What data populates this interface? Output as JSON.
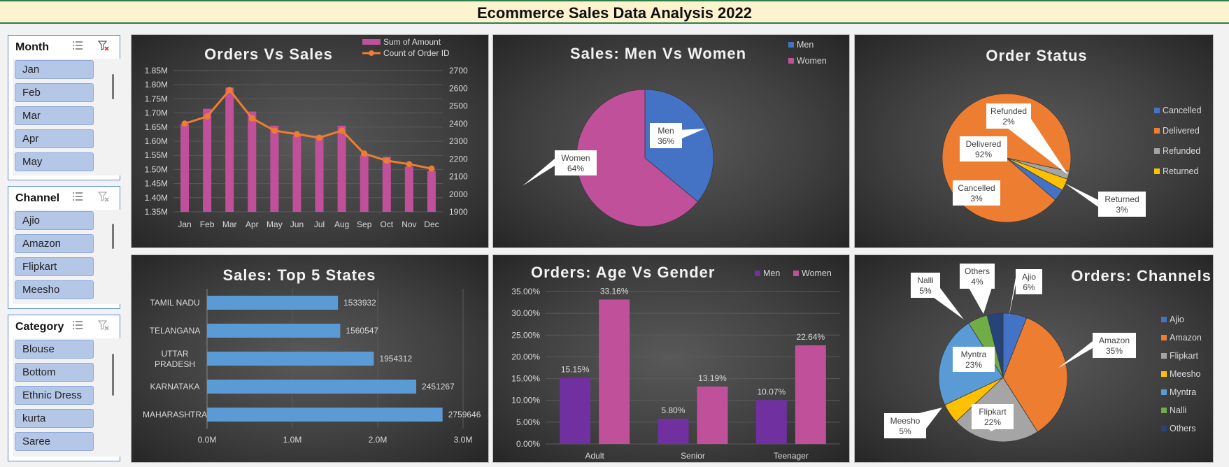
{
  "header": {
    "title": "Ecommerce Sales Data Analysis 2022"
  },
  "slicers": [
    {
      "title": "Month",
      "items": [
        "Jan",
        "Feb",
        "Mar",
        "Apr",
        "May"
      ]
    },
    {
      "title": "Channel",
      "items": [
        "Ajio",
        "Amazon",
        "Flipkart",
        "Meesho"
      ]
    },
    {
      "title": "Category",
      "items": [
        "Blouse",
        "Bottom",
        "Ethnic Dress",
        "kurta",
        "Saree"
      ]
    }
  ],
  "colors": {
    "pink": "#c0509a",
    "orange": "#ed7d31",
    "blue": "#4472c4",
    "lightblue": "#5b9bd5",
    "gray": "#a5a5a5",
    "yellow": "#ffc000",
    "green": "#70ad47",
    "navy": "#264478",
    "purple": "#7030a0",
    "text": "#d9d9d9"
  },
  "chart_data": [
    {
      "id": "orders-vs-sales",
      "type": "bar",
      "title": "Orders Vs Sales",
      "categories": [
        "Jan",
        "Feb",
        "Mar",
        "Apr",
        "May",
        "Jun",
        "Jul",
        "Aug",
        "Sep",
        "Oct",
        "Nov",
        "Dec"
      ],
      "series": [
        {
          "name": "Sum of Amount",
          "type": "bar",
          "axis": "left",
          "values": [
            1.66,
            1.715,
            1.79,
            1.705,
            1.655,
            1.62,
            1.62,
            1.655,
            1.55,
            1.545,
            1.51,
            1.495
          ]
        },
        {
          "name": "Count of Order ID",
          "type": "line",
          "axis": "right",
          "values": [
            2400,
            2440,
            2590,
            2430,
            2360,
            2340,
            2320,
            2360,
            2230,
            2190,
            2170,
            2145
          ]
        }
      ],
      "left_ticks": [
        "1.35M",
        "1.40M",
        "1.45M",
        "1.50M",
        "1.55M",
        "1.60M",
        "1.65M",
        "1.70M",
        "1.75M",
        "1.80M",
        "1.85M"
      ],
      "right_ticks": [
        "1900",
        "2000",
        "2100",
        "2200",
        "2300",
        "2400",
        "2500",
        "2600",
        "2700"
      ],
      "ylim_left": [
        1.35,
        1.85
      ],
      "ylim_right": [
        1900,
        2700
      ],
      "legend": "top-right",
      "grid": true
    },
    {
      "id": "sales-men-women",
      "type": "pie",
      "title": "Sales: Men Vs Women",
      "slices": [
        {
          "label": "Men",
          "value": 36,
          "text": "36%"
        },
        {
          "label": "Women",
          "value": 64,
          "text": "64%"
        }
      ],
      "legend": "top-right"
    },
    {
      "id": "order-status",
      "type": "pie",
      "title": "Order Status",
      "slices": [
        {
          "label": "Cancelled",
          "value": 3,
          "text": "3%"
        },
        {
          "label": "Delivered",
          "value": 92,
          "text": "92%"
        },
        {
          "label": "Refunded",
          "value": 2,
          "text": "2%"
        },
        {
          "label": "Returned",
          "value": 3,
          "text": "3%"
        }
      ],
      "legend": "right"
    },
    {
      "id": "top-5-states",
      "type": "bar",
      "orientation": "horizontal",
      "title": "Sales: Top 5 States",
      "categories": [
        "TAMIL NADU",
        "TELANGANA",
        "UTTAR PRADESH",
        "KARNATAKA",
        "MAHARASHTRA"
      ],
      "values": [
        1533932,
        1560547,
        1954312,
        2451267,
        2759646
      ],
      "value_labels": [
        "1533932",
        "1560547",
        "1954312",
        "2451267",
        "2759646"
      ],
      "x_ticks": [
        "0.0M",
        "1.0M",
        "2.0M",
        "3.0M"
      ],
      "xlim": [
        0,
        3000000
      ],
      "grid": true
    },
    {
      "id": "age-vs-gender",
      "type": "bar",
      "title": "Orders: Age Vs Gender",
      "categories": [
        "Adult",
        "Senior",
        "Teenager"
      ],
      "series": [
        {
          "name": "Men",
          "values": [
            15.15,
            5.8,
            10.07
          ],
          "labels": [
            "15.15%",
            "5.80%",
            "10.07%"
          ]
        },
        {
          "name": "Women",
          "values": [
            33.16,
            13.19,
            22.64
          ],
          "labels": [
            "33.16%",
            "13.19%",
            "22.64%"
          ]
        }
      ],
      "y_ticks": [
        "0.00%",
        "5.00%",
        "10.00%",
        "15.00%",
        "20.00%",
        "25.00%",
        "30.00%",
        "35.00%"
      ],
      "ylim": [
        0,
        35
      ],
      "legend": "top-right",
      "grid": true
    },
    {
      "id": "orders-channels",
      "type": "pie",
      "title": "Orders: Channels",
      "slices": [
        {
          "label": "Ajio",
          "value": 6,
          "text": "6%"
        },
        {
          "label": "Amazon",
          "value": 35,
          "text": "35%"
        },
        {
          "label": "Flipkart",
          "value": 22,
          "text": "22%"
        },
        {
          "label": "Meesho",
          "value": 5,
          "text": "5%"
        },
        {
          "label": "Myntra",
          "value": 23,
          "text": "23%"
        },
        {
          "label": "Nalli",
          "value": 5,
          "text": "5%"
        },
        {
          "label": "Others",
          "value": 4,
          "text": "4%"
        }
      ],
      "legend": "right"
    }
  ]
}
